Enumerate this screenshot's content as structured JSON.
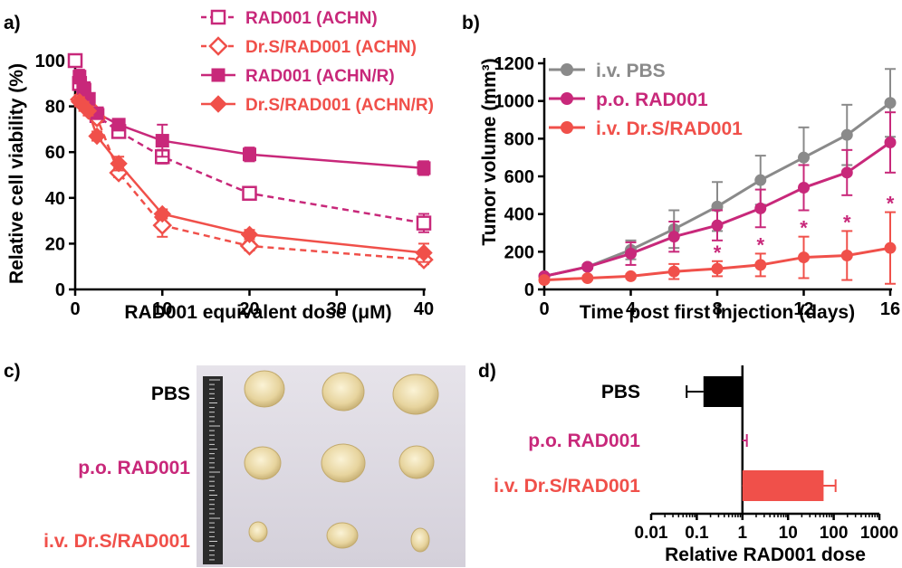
{
  "colors": {
    "magenta": "#c8287a",
    "salmon": "#f0504a",
    "gray": "#8a8a8a",
    "black": "#000000"
  },
  "panels": {
    "a": "a)",
    "b": "b)",
    "c": "c)",
    "d": "d)"
  },
  "chart_data": [
    {
      "panel": "a",
      "type": "line",
      "xlabel": "RAD001 equivalent dose (μM)",
      "ylabel": "Relative cell viability (%)",
      "xlim": [
        0,
        40
      ],
      "ylim": [
        0,
        100
      ],
      "xticks": [
        0,
        10,
        20,
        30,
        40
      ],
      "yticks": [
        0,
        20,
        40,
        60,
        80,
        100
      ],
      "legend_position": "top-right",
      "series": [
        {
          "name": "RAD001 (ACHN)",
          "marker": "open-square",
          "line": "dashed",
          "color": "magenta",
          "x": [
            0,
            0.5,
            1,
            1.5,
            2.5,
            5,
            10,
            20,
            40
          ],
          "y": [
            100,
            90,
            87,
            83,
            76,
            69,
            58,
            42,
            29
          ],
          "err": [
            0,
            2,
            2,
            2,
            2,
            2,
            3,
            2,
            4
          ]
        },
        {
          "name": "Dr.S/RAD001 (ACHN)",
          "marker": "open-diamond",
          "line": "dashed",
          "color": "salmon",
          "x": [
            0.5,
            1,
            1.5,
            2.5,
            5,
            10,
            20,
            40
          ],
          "y": [
            83,
            81,
            80,
            75,
            51,
            28,
            19,
            13
          ],
          "err": [
            2,
            2,
            2,
            2,
            2,
            5,
            2,
            2
          ]
        },
        {
          "name": "RAD001 (ACHN/R)",
          "marker": "filled-square",
          "line": "solid",
          "color": "magenta",
          "x": [
            0.5,
            1,
            1.5,
            2.5,
            5,
            10,
            20,
            40
          ],
          "y": [
            93,
            88,
            83,
            77,
            72,
            65,
            59,
            53
          ],
          "err": [
            3,
            2,
            2,
            2,
            2,
            7,
            3,
            3
          ]
        },
        {
          "name": "Dr.S/RAD001 (ACHN/R)",
          "marker": "filled-diamond",
          "line": "solid",
          "color": "salmon",
          "x": [
            0.5,
            1,
            1.5,
            2.5,
            5,
            10,
            20,
            40
          ],
          "y": [
            82,
            80,
            78,
            67,
            55,
            33,
            24,
            16
          ],
          "err": [
            2,
            2,
            2,
            2,
            3,
            2,
            2,
            4
          ]
        }
      ]
    },
    {
      "panel": "b",
      "type": "line",
      "xlabel": "Time post first injection (days)",
      "ylabel": "Tumor volume (mm³)",
      "xlim": [
        0,
        16
      ],
      "ylim": [
        0,
        1200
      ],
      "xticks": [
        0,
        4,
        8,
        12,
        16
      ],
      "yticks": [
        0,
        200,
        400,
        600,
        800,
        1000,
        1200
      ],
      "legend_position": "top-left",
      "significance_marker": "*",
      "significance_days": [
        8,
        10,
        12,
        14,
        16
      ],
      "x": [
        0,
        2,
        4,
        6,
        8,
        10,
        12,
        14,
        16
      ],
      "series": [
        {
          "name": "i.v. PBS",
          "color": "gray",
          "y": [
            70,
            120,
            210,
            320,
            440,
            580,
            700,
            820,
            990
          ],
          "err": [
            10,
            10,
            50,
            100,
            130,
            130,
            160,
            160,
            180
          ]
        },
        {
          "name": "p.o. RAD001",
          "color": "magenta",
          "y": [
            70,
            120,
            190,
            280,
            340,
            430,
            540,
            620,
            780
          ],
          "err": [
            10,
            10,
            60,
            80,
            80,
            100,
            120,
            120,
            160
          ]
        },
        {
          "name": "i.v. Dr.S/RAD001",
          "color": "salmon",
          "y": [
            50,
            60,
            70,
            95,
            110,
            130,
            170,
            180,
            220
          ],
          "err": [
            10,
            10,
            10,
            40,
            40,
            60,
            110,
            130,
            190
          ]
        }
      ]
    },
    {
      "panel": "d",
      "type": "bar",
      "orientation": "horizontal",
      "scale": "log",
      "baseline": 1,
      "xlabel": "Relative RAD001 dose",
      "xlim": [
        0.01,
        1000
      ],
      "xticks": [
        "0.01",
        "0.1",
        "1",
        "10",
        "100",
        "1000"
      ],
      "categories": [
        "PBS",
        "p.o. RAD001",
        "i.v. Dr.S/RAD001"
      ],
      "values": [
        0.14,
        1.1,
        60
      ],
      "err_low": [
        0.06,
        1.1,
        60
      ],
      "err_high": [
        0.14,
        1.25,
        110
      ],
      "bar_colors": [
        "black",
        "magenta",
        "salmon"
      ]
    }
  ],
  "photo": {
    "row_labels": [
      "PBS",
      "p.o. RAD001",
      "i.v. Dr.S/RAD001"
    ],
    "row_label_colors": [
      "black",
      "magenta",
      "salmon"
    ]
  }
}
